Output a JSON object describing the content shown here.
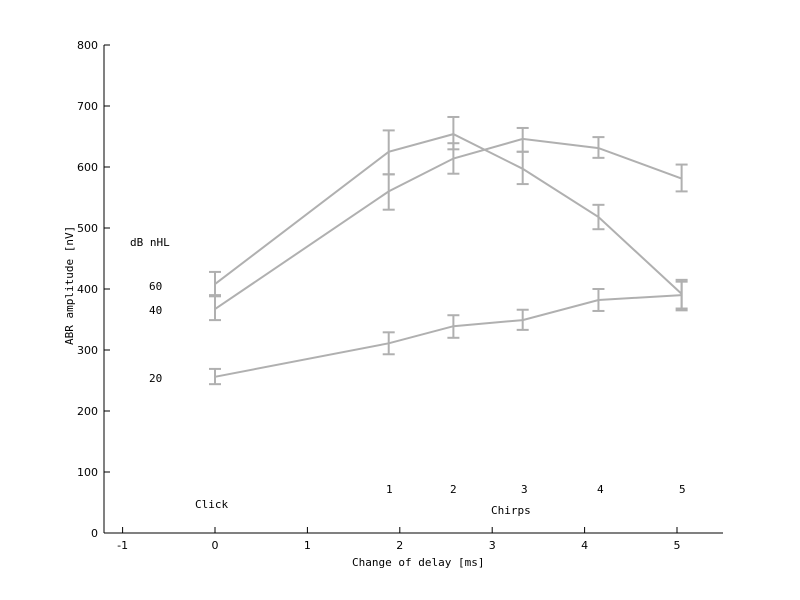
{
  "chart_data": {
    "type": "line",
    "title": "",
    "xlabel": "Change of delay [ms]",
    "ylabel": "ABR amplitude [nV]",
    "xlim": [
      -1.15,
      5.5
    ],
    "ylim": [
      0,
      800
    ],
    "xticks": [
      -1,
      0,
      1,
      2,
      3,
      4,
      5
    ],
    "yticks": [
      0,
      100,
      200,
      300,
      400,
      500,
      600,
      700,
      800
    ],
    "grid": false,
    "legend": {
      "title": "dB nHL",
      "entries": [
        {
          "label": "60",
          "y": 400
        },
        {
          "label": "40",
          "y": 362
        },
        {
          "label": "20",
          "y": 251
        }
      ]
    },
    "annotations": {
      "click_label": "Click",
      "chirps_label": "Chirps",
      "chirp_numbers": [
        "1",
        "2",
        "3",
        "4",
        "5"
      ],
      "chirp_number_x": [
        1.85,
        2.55,
        3.35,
        4.15,
        5.05
      ]
    },
    "x": [
      0,
      1.88,
      2.58,
      3.33,
      4.15,
      5.05
    ],
    "series": [
      {
        "name": "60 dB nHL",
        "values": [
          408,
          625,
          654,
          597,
          518,
          392
        ],
        "err_low": [
          390,
          588,
          629,
          572,
          498,
          365
        ],
        "err_high": [
          428,
          660,
          682,
          625,
          538,
          415
        ]
      },
      {
        "name": "40 dB nHL",
        "values": [
          367,
          560,
          614,
          646,
          631,
          581
        ],
        "err_low": [
          349,
          530,
          589,
          625,
          615,
          560
        ],
        "err_high": [
          388,
          588,
          639,
          664,
          649,
          604
        ]
      },
      {
        "name": "20 dB nHL",
        "values": [
          256,
          311,
          339,
          349,
          382,
          390
        ],
        "err_low": [
          244,
          293,
          320,
          333,
          364,
          368
        ],
        "err_high": [
          269,
          329,
          357,
          366,
          400,
          412
        ]
      }
    ],
    "line_color": "#b0b0b0"
  }
}
